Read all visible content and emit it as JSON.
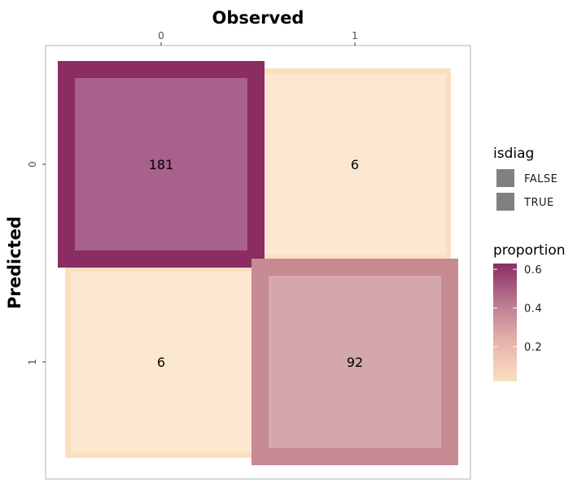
{
  "chart_data": {
    "type": "heatmap",
    "title": "",
    "xlabel": "Observed",
    "ylabel": "Predicted",
    "x_categories": [
      "0",
      "1"
    ],
    "y_categories": [
      "0",
      "1"
    ],
    "x_axis_position": "top",
    "cells": [
      {
        "observed": "0",
        "predicted": "0",
        "count": 181,
        "label": "181",
        "proportion": 0.63,
        "isdiag": true
      },
      {
        "observed": "1",
        "predicted": "0",
        "count": 6,
        "label": "6",
        "proportion": 0.02,
        "isdiag": false
      },
      {
        "observed": "0",
        "predicted": "1",
        "count": 6,
        "label": "6",
        "proportion": 0.02,
        "isdiag": false
      },
      {
        "observed": "1",
        "predicted": "1",
        "count": 92,
        "label": "92",
        "proportion": 0.32,
        "isdiag": true
      }
    ],
    "legend_isdiag": {
      "title": "isdiag",
      "entries": [
        "FALSE",
        "TRUE"
      ],
      "key_color": "#808080"
    },
    "legend_proportion": {
      "title": "proportion",
      "ticks": [
        {
          "value": 0.6,
          "label": "0.6"
        },
        {
          "value": 0.4,
          "label": "0.4"
        },
        {
          "value": 0.2,
          "label": "0.2"
        }
      ],
      "range": [
        0.02,
        0.63
      ],
      "colors_low_to_high": [
        "#fbe0c0",
        "#f0b9ae",
        "#c48891",
        "#a05a85",
        "#8b2c63"
      ]
    },
    "grid": false,
    "panel_border_color": "#b3b3b3",
    "legend_placement": "right"
  }
}
